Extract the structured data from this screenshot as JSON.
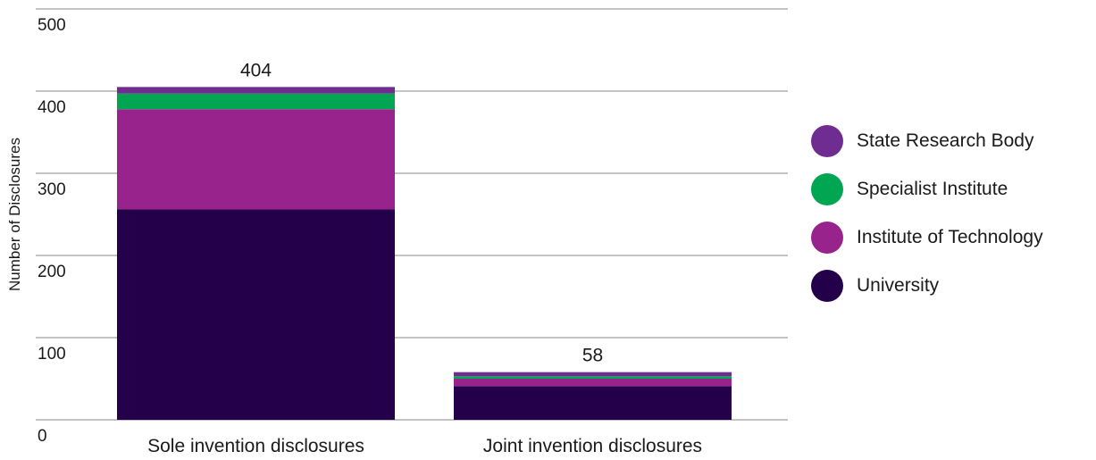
{
  "chart_data": {
    "type": "bar",
    "stacked": true,
    "ylabel": "Number of Disclosures",
    "ylim": [
      0,
      500
    ],
    "yticks": [
      0,
      100,
      200,
      300,
      400,
      500
    ],
    "grid": true,
    "legend_position": "right",
    "categories": [
      "Sole invention disclosures",
      "Joint invention disclosures"
    ],
    "totals": [
      "404",
      "58"
    ],
    "series": [
      {
        "name": "University",
        "color": "#24004b",
        "values": [
          256,
          41
        ]
      },
      {
        "name": "Institute of Technology",
        "color": "#98238d",
        "values": [
          122,
          9
        ]
      },
      {
        "name": "Specialist Institute",
        "color": "#00a651",
        "values": [
          19,
          3
        ]
      },
      {
        "name": "State Research Body",
        "color": "#6f2c91",
        "values": [
          8,
          5
        ]
      }
    ],
    "legend_order": [
      "State Research Body",
      "Specialist Institute",
      "Institute of Technology",
      "University"
    ]
  }
}
